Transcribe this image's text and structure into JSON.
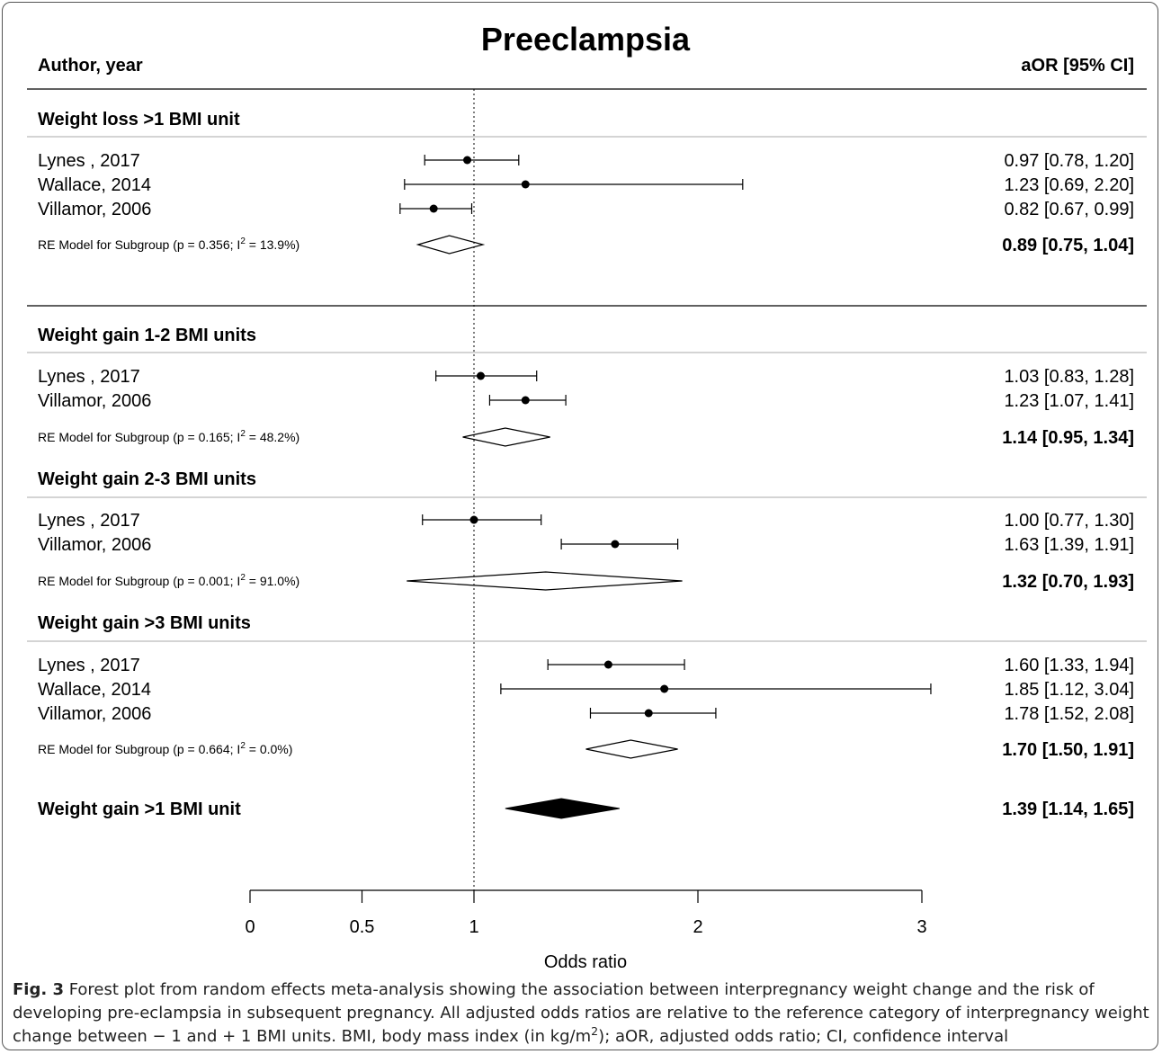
{
  "chart_data": {
    "type": "forest",
    "title": "Preeclampsia",
    "left_header": "Author, year",
    "right_header": "aOR [95% CI]",
    "xlabel": "Odds ratio",
    "xlim": [
      0,
      3
    ],
    "xticks": [
      "0",
      "0.5",
      "1",
      "2",
      "3"
    ],
    "xtick_values": [
      0,
      0.5,
      1,
      2,
      3
    ],
    "reference_line": 1,
    "subgroups": [
      {
        "name": "Weight loss >1 BMI unit",
        "studies": [
          {
            "label": "Lynes , 2017",
            "or": 0.97,
            "lo": 0.78,
            "hi": 1.2,
            "text": "0.97 [0.78, 1.20]"
          },
          {
            "label": "Wallace, 2014",
            "or": 1.23,
            "lo": 0.69,
            "hi": 2.2,
            "text": "1.23 [0.69, 2.20]"
          },
          {
            "label": "Villamor, 2006",
            "or": 0.82,
            "lo": 0.67,
            "hi": 0.99,
            "text": "0.82 [0.67, 0.99]"
          }
        ],
        "summary": {
          "label_pre": "RE Model for Subgroup (p = 0.356; I",
          "label_post": " = 13.9%)",
          "or": 0.89,
          "lo": 0.75,
          "hi": 1.04,
          "text": "0.89 [0.75, 1.04]"
        }
      },
      {
        "name": "Weight gain 1-2 BMI units",
        "studies": [
          {
            "label": "Lynes , 2017",
            "or": 1.03,
            "lo": 0.83,
            "hi": 1.28,
            "text": "1.03 [0.83, 1.28]"
          },
          {
            "label": "Villamor, 2006",
            "or": 1.23,
            "lo": 1.07,
            "hi": 1.41,
            "text": "1.23 [1.07, 1.41]"
          }
        ],
        "summary": {
          "label_pre": "RE Model for Subgroup (p = 0.165; I",
          "label_post": " = 48.2%)",
          "or": 1.14,
          "lo": 0.95,
          "hi": 1.34,
          "text": "1.14 [0.95, 1.34]"
        }
      },
      {
        "name": "Weight gain 2-3 BMI units",
        "studies": [
          {
            "label": "Lynes , 2017",
            "or": 1.0,
            "lo": 0.77,
            "hi": 1.3,
            "text": "1.00 [0.77, 1.30]"
          },
          {
            "label": "Villamor, 2006",
            "or": 1.63,
            "lo": 1.39,
            "hi": 1.91,
            "text": "1.63 [1.39, 1.91]"
          }
        ],
        "summary": {
          "label_pre": "RE Model for Subgroup (p = 0.001; I",
          "label_post": " = 91.0%)",
          "or": 1.32,
          "lo": 0.7,
          "hi": 1.93,
          "text": "1.32 [0.70, 1.93]"
        }
      },
      {
        "name": "Weight gain >3 BMI units",
        "studies": [
          {
            "label": "Lynes , 2017",
            "or": 1.6,
            "lo": 1.33,
            "hi": 1.94,
            "text": "1.60 [1.33, 1.94]"
          },
          {
            "label": "Wallace, 2014",
            "or": 1.85,
            "lo": 1.12,
            "hi": 3.04,
            "text": "1.85 [1.12, 3.04]"
          },
          {
            "label": "Villamor, 2006",
            "or": 1.78,
            "lo": 1.52,
            "hi": 2.08,
            "text": "1.78 [1.52, 2.08]"
          }
        ],
        "summary": {
          "label_pre": "RE Model for Subgroup (p = 0.664; I",
          "label_post": " = 0.0%)",
          "or": 1.7,
          "lo": 1.5,
          "hi": 1.91,
          "text": "1.70 [1.50, 1.91]"
        }
      }
    ],
    "overall": {
      "label": "Weight gain >1 BMI unit",
      "or": 1.39,
      "lo": 1.14,
      "hi": 1.65,
      "text": "1.39 [1.14, 1.65]"
    }
  },
  "caption": {
    "fig_label": "Fig. 3",
    "text_before_sup": " Forest plot from random effects meta-analysis showing the association between interpregnancy weight change and the risk of developing pre-eclampsia in subsequent pregnancy. All adjusted odds ratios are relative to the reference category of interpregnancy weight change between − 1 and + 1 BMI units. BMI, body mass index (in kg/m",
    "sup": "2",
    "text_after_sup": "); aOR, adjusted odds ratio; CI, confidence interval"
  }
}
